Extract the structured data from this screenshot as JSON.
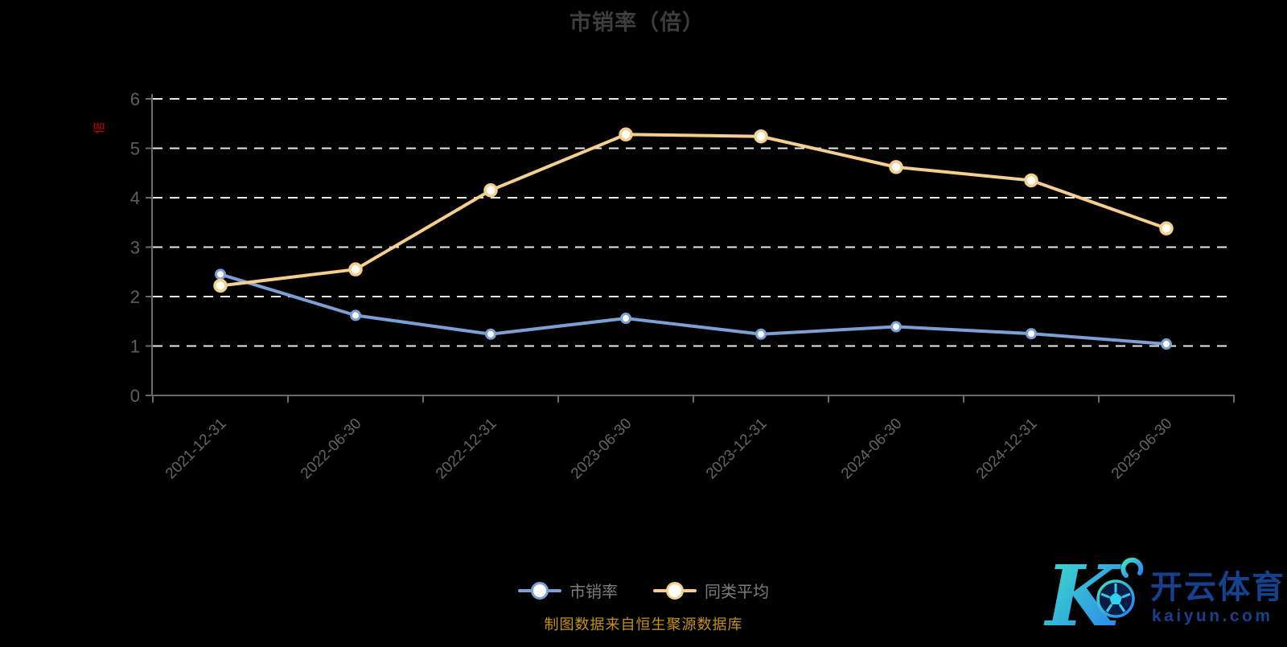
{
  "header": {
    "title": "市销率（倍）"
  },
  "chart_data": {
    "type": "line",
    "title": "市销率（倍）",
    "y_axis_name": "倍",
    "y_axis_name_color": "#cc0000",
    "categories": [
      "2021-12-31",
      "2022-06-30",
      "2022-12-31",
      "2023-06-30",
      "2023-12-31",
      "2024-06-30",
      "2024-12-31",
      "2025-06-30"
    ],
    "series": [
      {
        "id": "psr",
        "name": "市销率",
        "color": "#7aa0d4",
        "values": [
          2.45,
          1.62,
          1.24,
          1.56,
          1.24,
          1.39,
          1.25,
          1.04
        ]
      },
      {
        "id": "peer-avg",
        "name": "同类平均",
        "color": "#f6cf8c",
        "values": [
          2.22,
          2.55,
          4.15,
          5.28,
          5.24,
          4.62,
          4.35,
          3.38
        ]
      }
    ],
    "ylim": [
      0,
      6
    ],
    "y_ticks": [
      0,
      1,
      2,
      3,
      4,
      5,
      6
    ],
    "grid": "horizontal-dashed-white",
    "gridline_color": "#e8e8e8",
    "axis_color": "#6a6a6a",
    "tick_label_color": "#5f5f5f",
    "legend_position": "bottom-center",
    "marker": "white-filled-circle"
  },
  "footer": {
    "note": "制图数据来自恒生聚源数据库",
    "color": "#c6920f"
  },
  "watermark": {
    "brand": "开云体育",
    "domain": "kaiyun.com",
    "text_color": "#16418f",
    "gradient_start": "#3ee6c3",
    "gradient_end": "#2a7df2",
    "ball_fill": "#0a1c44"
  }
}
